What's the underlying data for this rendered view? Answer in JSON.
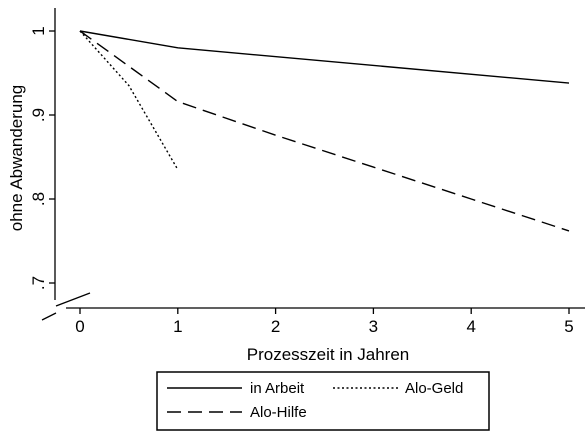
{
  "chart_data": {
    "type": "line",
    "title": "",
    "xlabel": "Prozesszeit in Jahren",
    "ylabel": "ohne Abwanderung",
    "xlim": [
      -0.25,
      5.05
    ],
    "ylim": [
      0.685,
      1.03
    ],
    "x_ticks": [
      0,
      1,
      2,
      3,
      4,
      5
    ],
    "x_tick_labels": [
      "0",
      "1",
      "2",
      "3",
      "4",
      "5"
    ],
    "y_ticks": [
      0.7,
      0.8,
      0.9,
      1.0
    ],
    "y_tick_labels": [
      ".7",
      ".8",
      ".9",
      "1"
    ],
    "grid": false,
    "legend_position": "bottom",
    "series": [
      {
        "name": "in Arbeit",
        "style": "solid",
        "color": "#000000",
        "x": [
          0,
          1,
          5
        ],
        "y": [
          1.0,
          0.98,
          0.938
        ]
      },
      {
        "name": "Alo-Hilfe",
        "style": "long-dash",
        "color": "#000000",
        "x": [
          0,
          1,
          2,
          3,
          4,
          5
        ],
        "y": [
          1.0,
          0.916,
          0.876,
          0.838,
          0.8,
          0.762
        ]
      },
      {
        "name": "Alo-Geld",
        "style": "dotted",
        "color": "#000000",
        "x": [
          0,
          0.5,
          1
        ],
        "y": [
          1.0,
          0.935,
          0.835
        ]
      }
    ],
    "legend_order": [
      "in Arbeit",
      "Alo-Geld",
      "Alo-Hilfe"
    ]
  }
}
